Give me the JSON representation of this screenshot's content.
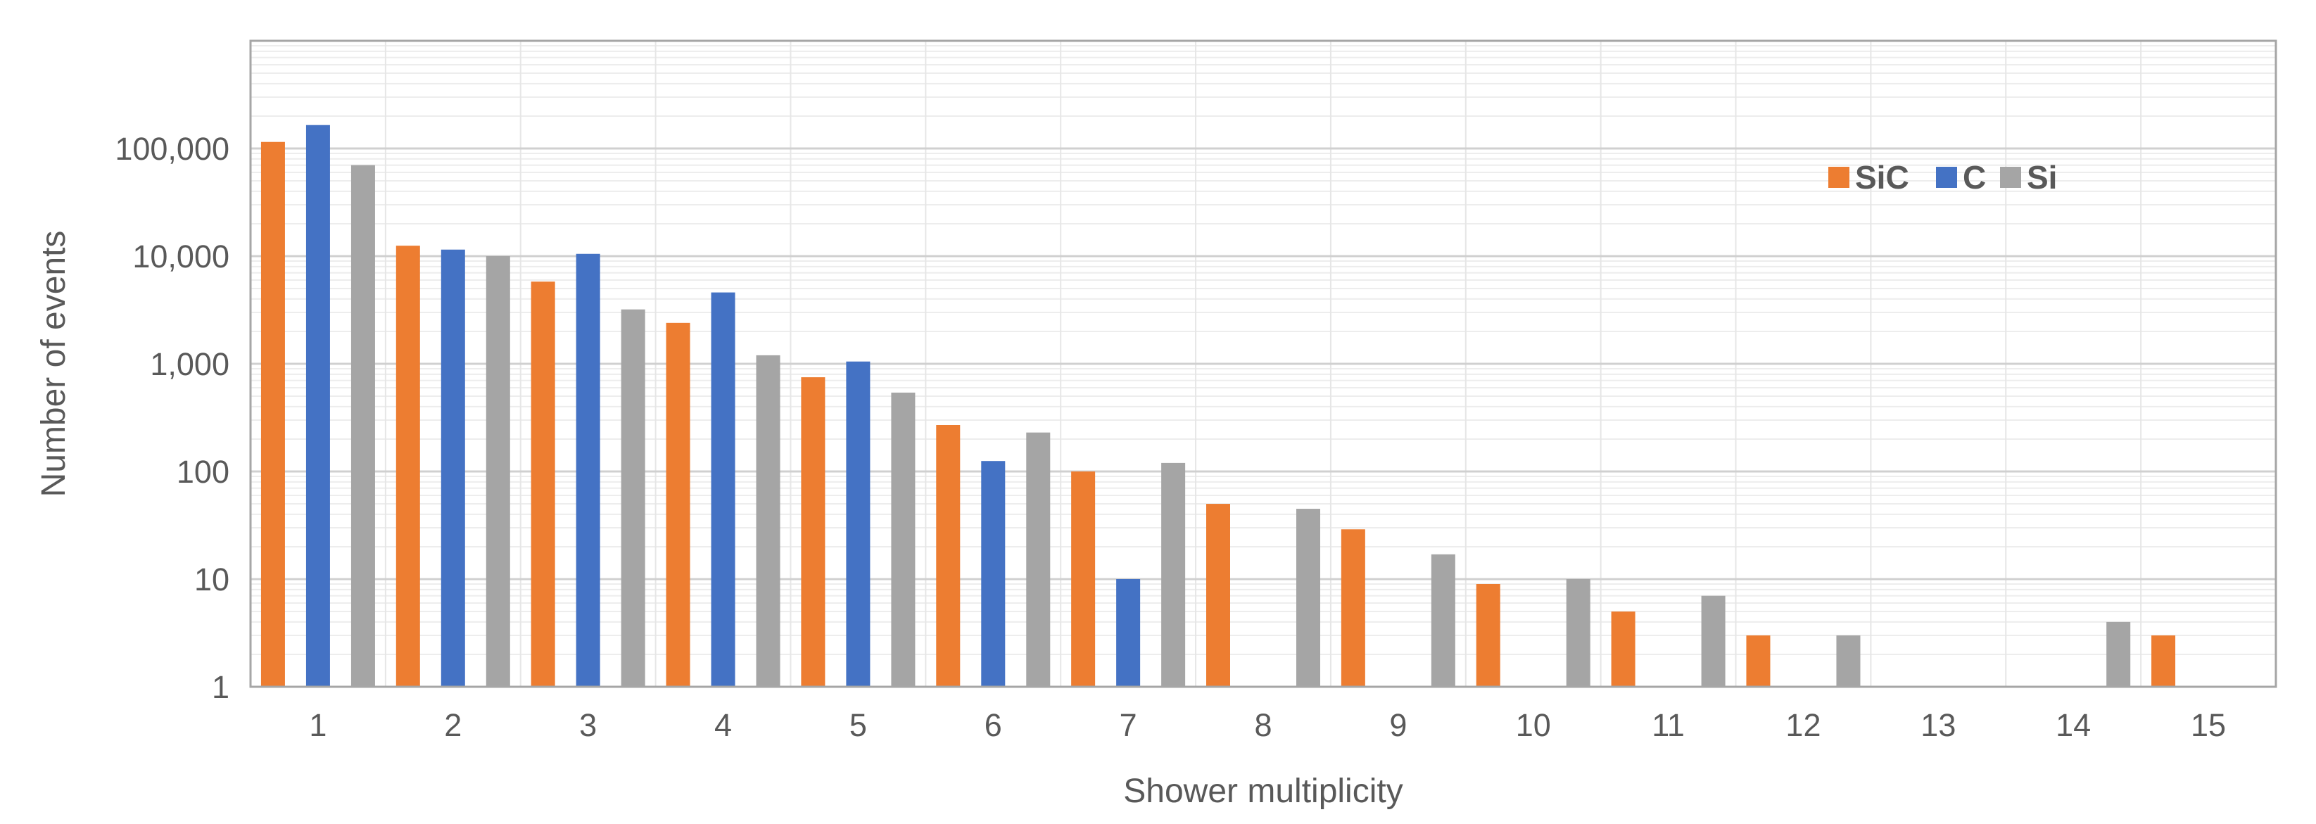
{
  "chart_data": {
    "type": "bar",
    "xlabel": "Shower multiplicity",
    "ylabel": "Number of events",
    "y_scale": "log",
    "ylim": [
      1,
      1000000
    ],
    "y_tick_values": [
      1,
      10,
      100,
      1000,
      10000,
      100000
    ],
    "y_tick_labels": [
      "1",
      "10",
      "100",
      "1,000",
      "10,000",
      "100,000"
    ],
    "categories": [
      "1",
      "2",
      "3",
      "4",
      "5",
      "6",
      "7",
      "8",
      "9",
      "10",
      "11",
      "12",
      "13",
      "14",
      "15"
    ],
    "series": [
      {
        "name": "SiC",
        "color": "#ED7D31",
        "values": [
          115000,
          12500,
          5800,
          2400,
          750,
          270,
          100,
          50,
          29,
          9,
          5,
          3,
          null,
          null,
          3
        ]
      },
      {
        "name": "C",
        "color": "#4472C4",
        "values": [
          165000,
          11500,
          10500,
          4600,
          1050,
          125,
          10,
          null,
          null,
          null,
          null,
          null,
          null,
          null,
          null
        ]
      },
      {
        "name": "Si",
        "color": "#A5A5A5",
        "values": [
          70000,
          10000,
          3200,
          1200,
          540,
          230,
          120,
          45,
          17,
          10,
          7,
          3,
          null,
          4,
          null
        ]
      }
    ],
    "grid": true,
    "legend_position": "upper-right inside"
  }
}
